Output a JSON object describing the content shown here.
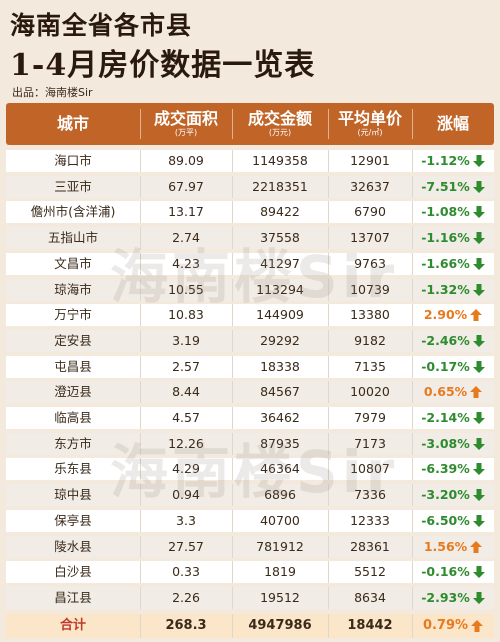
{
  "title_line1": "海南全省各市县",
  "title_line2": "1-4月房价数据一览表",
  "source": "出品：海南楼Sir",
  "watermark": "海南楼Sir",
  "headers": {
    "city": "城市",
    "area": "成交面积",
    "area_unit": "(万平)",
    "amount": "成交金额",
    "amount_unit": "(万元)",
    "price": "平均单价",
    "price_unit": "(元/㎡)",
    "change": "涨幅"
  },
  "colors": {
    "header_bg": "#c06428",
    "down": "#2e8b2e",
    "up": "#e87a1e",
    "total_bg": "#fbe6c9"
  },
  "rows": [
    {
      "city": "海口市",
      "area": "89.09",
      "amount": "1149358",
      "price": "12901",
      "change": "-1.12%",
      "dir": "down"
    },
    {
      "city": "三亚市",
      "area": "67.97",
      "amount": "2218351",
      "price": "32637",
      "change": "-7.51%",
      "dir": "down"
    },
    {
      "city": "儋州市(含洋浦)",
      "area": "13.17",
      "amount": "89422",
      "price": "6790",
      "change": "-1.08%",
      "dir": "down"
    },
    {
      "city": "五指山市",
      "area": "2.74",
      "amount": "37558",
      "price": "13707",
      "change": "-1.16%",
      "dir": "down"
    },
    {
      "city": "文昌市",
      "area": "4.23",
      "amount": "41297",
      "price": "9763",
      "change": "-1.66%",
      "dir": "down"
    },
    {
      "city": "琼海市",
      "area": "10.55",
      "amount": "113294",
      "price": "10739",
      "change": "-1.32%",
      "dir": "down"
    },
    {
      "city": "万宁市",
      "area": "10.83",
      "amount": "144909",
      "price": "13380",
      "change": "2.90%",
      "dir": "up"
    },
    {
      "city": "定安县",
      "area": "3.19",
      "amount": "29292",
      "price": "9182",
      "change": "-2.46%",
      "dir": "down"
    },
    {
      "city": "屯昌县",
      "area": "2.57",
      "amount": "18338",
      "price": "7135",
      "change": "-0.17%",
      "dir": "down"
    },
    {
      "city": "澄迈县",
      "area": "8.44",
      "amount": "84567",
      "price": "10020",
      "change": "0.65%",
      "dir": "up"
    },
    {
      "city": "临高县",
      "area": "4.57",
      "amount": "36462",
      "price": "7979",
      "change": "-2.14%",
      "dir": "down"
    },
    {
      "city": "东方市",
      "area": "12.26",
      "amount": "87935",
      "price": "7173",
      "change": "-3.08%",
      "dir": "down"
    },
    {
      "city": "乐东县",
      "area": "4.29",
      "amount": "46364",
      "price": "10807",
      "change": "-6.39%",
      "dir": "down"
    },
    {
      "city": "琼中县",
      "area": "0.94",
      "amount": "6896",
      "price": "7336",
      "change": "-3.20%",
      "dir": "down"
    },
    {
      "city": "保亭县",
      "area": "3.3",
      "amount": "40700",
      "price": "12333",
      "change": "-6.50%",
      "dir": "down"
    },
    {
      "city": "陵水县",
      "area": "27.57",
      "amount": "781912",
      "price": "28361",
      "change": "1.56%",
      "dir": "up"
    },
    {
      "city": "白沙县",
      "area": "0.33",
      "amount": "1819",
      "price": "5512",
      "change": "-0.16%",
      "dir": "down"
    },
    {
      "city": "昌江县",
      "area": "2.26",
      "amount": "19512",
      "price": "8634",
      "change": "-2.93%",
      "dir": "down"
    }
  ],
  "total": {
    "city": "合计",
    "area": "268.3",
    "amount": "4947986",
    "price": "18442",
    "change": "0.79%",
    "dir": "up"
  }
}
